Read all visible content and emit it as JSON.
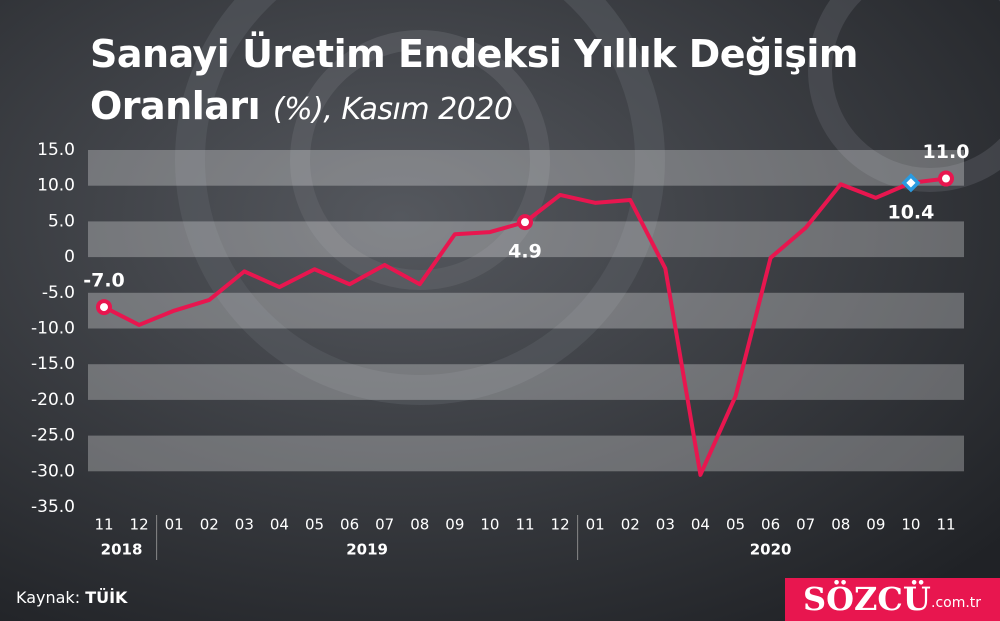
{
  "chart_data": {
    "type": "line",
    "title": "Sanayi Üretim Endeksi Yıllık Değişim Oranları",
    "subtitle": "(%), Kasım 2020",
    "categories": [
      "11",
      "12",
      "01",
      "02",
      "03",
      "04",
      "05",
      "06",
      "07",
      "08",
      "09",
      "10",
      "11",
      "12",
      "01",
      "02",
      "03",
      "04",
      "05",
      "06",
      "07",
      "08",
      "09",
      "10",
      "11"
    ],
    "years": [
      "2018",
      "2019",
      "2020"
    ],
    "series": [
      {
        "name": "Sanayi Üretim Endeksi",
        "color": "#e8164f",
        "values": [
          -7.0,
          -9.5,
          -7.5,
          -6.0,
          -2.0,
          -4.2,
          -1.7,
          -3.8,
          -1.1,
          -3.8,
          3.2,
          3.5,
          4.9,
          8.7,
          7.6,
          8.0,
          -1.6,
          -30.5,
          -19.5,
          -0.1,
          4.1,
          10.2,
          8.3,
          10.4,
          11.0
        ],
        "value_labels": [
          "-7.0",
          null,
          null,
          null,
          null,
          null,
          null,
          null,
          null,
          null,
          null,
          null,
          "4.9",
          null,
          null,
          null,
          null,
          null,
          null,
          null,
          null,
          null,
          null,
          "10.4",
          "11.0"
        ],
        "marker_colors": [
          "#e8164f",
          null,
          null,
          null,
          null,
          null,
          null,
          null,
          null,
          null,
          null,
          null,
          "#e8164f",
          null,
          null,
          null,
          null,
          null,
          null,
          null,
          null,
          null,
          null,
          "#2a9be0",
          "#e8164f"
        ]
      }
    ],
    "ylim": [
      -35,
      15
    ],
    "yticks": [
      {
        "value": 15,
        "label": "15.0"
      },
      {
        "value": 10,
        "label": "10.0"
      },
      {
        "value": 5,
        "label": "5.0"
      },
      0,
      {
        "value": -5,
        "label": "-5.0"
      },
      {
        "value": -10,
        "label": "-10.0"
      },
      {
        "value": -15,
        "label": "-15.0"
      },
      {
        "value": -20,
        "label": "-20.0"
      },
      {
        "value": -25,
        "label": "-25.0"
      },
      {
        "value": -30,
        "label": "-30.0"
      },
      {
        "value": -35,
        "label": "-35.0"
      }
    ],
    "grid": "bands",
    "source_label": "Kaynak:",
    "source": "TÜİK",
    "brand": "SÖZCÜ",
    "brand_domain": ".com.tr"
  }
}
